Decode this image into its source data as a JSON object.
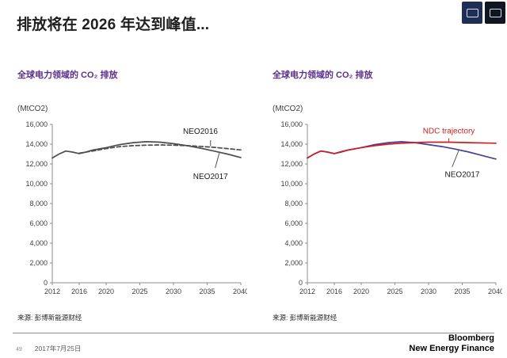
{
  "header": {
    "title": "排放将在 2026 年达到峰值..."
  },
  "colors": {
    "accent-purple": "#5b2d8c",
    "ndc-red": "#cc2020",
    "neo-purple": "#4a3f99",
    "line-gray": "#4d4d4d"
  },
  "footer": {
    "page_number": "49",
    "date": "2017年7月25日",
    "brand_line1": "Bloomberg",
    "brand_line2": "New Energy Finance"
  },
  "chart_data": [
    {
      "type": "line",
      "title": "全球电力领域的 CO₂ 排放",
      "unit_label": "(MtCO2)",
      "source": "来源: 彭博新能源财经",
      "xlim": [
        2012,
        2040
      ],
      "ylim": [
        0,
        16000
      ],
      "x_ticks": [
        2012,
        2016,
        2020,
        2025,
        2030,
        2035,
        2040
      ],
      "y_ticks": [
        0,
        2000,
        4000,
        6000,
        8000,
        10000,
        12000,
        14000,
        16000
      ],
      "grid": false,
      "legend": "inline-annotations",
      "series": [
        {
          "name": "NEO2016",
          "color": "#4d4d4d",
          "dashed": true,
          "x": [
            2016,
            2018,
            2020,
            2022,
            2024,
            2026,
            2028,
            2030,
            2032,
            2034,
            2036,
            2038,
            2040
          ],
          "values": [
            13100,
            13300,
            13550,
            13750,
            13850,
            13900,
            13920,
            13900,
            13850,
            13780,
            13680,
            13550,
            13420
          ]
        },
        {
          "name": "NEO2017",
          "color": "#4d4d4d",
          "dashed": false,
          "x": [
            2012,
            2013,
            2014,
            2015,
            2016,
            2017,
            2018,
            2020,
            2022,
            2024,
            2026,
            2028,
            2030,
            2032,
            2034,
            2036,
            2038,
            2040
          ],
          "values": [
            12600,
            13000,
            13300,
            13200,
            13050,
            13200,
            13400,
            13650,
            13950,
            14150,
            14250,
            14200,
            14050,
            13850,
            13600,
            13300,
            13000,
            12650
          ]
        }
      ],
      "annotations": [
        {
          "label": "NEO2016",
          "color": "#1a1a1a",
          "x": 2034,
          "v": 15050,
          "leader": {
            "x1": 2035.5,
            "v1": 14400,
            "x2": 2035.5,
            "v2": 13800
          },
          "leader_color": "#4d4d4d"
        },
        {
          "label": "NEO2017",
          "color": "#1a1a1a",
          "x": 2035.5,
          "v": 10500,
          "leader": {
            "x1": 2036.2,
            "v1": 11600,
            "x2": 2036.8,
            "v2": 13100
          },
          "leader_color": "#4d4d4d"
        }
      ]
    },
    {
      "type": "line",
      "title": "全球电力领域的 CO₂ 排放",
      "unit_label": "(MtCO2)",
      "source": "来源: 彭博新能源财经",
      "xlim": [
        2012,
        2040
      ],
      "ylim": [
        0,
        16000
      ],
      "x_ticks": [
        2012,
        2016,
        2020,
        2025,
        2030,
        2035,
        2040
      ],
      "y_ticks": [
        0,
        2000,
        4000,
        6000,
        8000,
        10000,
        12000,
        14000,
        16000
      ],
      "grid": false,
      "legend": "inline-annotations",
      "series": [
        {
          "name": "NEO2017",
          "color": "#4a3f99",
          "dashed": false,
          "x": [
            2012,
            2013,
            2014,
            2015,
            2016,
            2017,
            2018,
            2020,
            2022,
            2024,
            2026,
            2028,
            2030,
            2032,
            2034,
            2036,
            2038,
            2040
          ],
          "values": [
            12600,
            13000,
            13300,
            13200,
            13050,
            13200,
            13400,
            13650,
            13950,
            14150,
            14250,
            14150,
            13950,
            13750,
            13500,
            13200,
            12850,
            12500
          ]
        },
        {
          "name": "NDC trajectory",
          "color": "#cc2020",
          "dashed": false,
          "x": [
            2012,
            2013,
            2014,
            2015,
            2016,
            2017,
            2018,
            2020,
            2022,
            2024,
            2026,
            2028,
            2030,
            2033,
            2036,
            2040
          ],
          "values": [
            12600,
            13000,
            13300,
            13200,
            13050,
            13250,
            13400,
            13650,
            13850,
            14000,
            14100,
            14150,
            14200,
            14200,
            14150,
            14100
          ]
        }
      ],
      "annotations": [
        {
          "label": "NDC trajectory",
          "color": "#cc2020",
          "x": 2033,
          "v": 15100,
          "leader": {
            "x1": 2033,
            "v1": 14600,
            "x2": 2033,
            "v2": 14280
          },
          "leader_color": "#cc2020"
        },
        {
          "label": "NEO2017",
          "color": "#1a1a1a",
          "x": 2035,
          "v": 10700,
          "leader": {
            "x1": 2033.5,
            "v1": 11700,
            "x2": 2034.5,
            "v2": 13400
          },
          "leader_color": "#4d4d4d"
        }
      ]
    }
  ]
}
